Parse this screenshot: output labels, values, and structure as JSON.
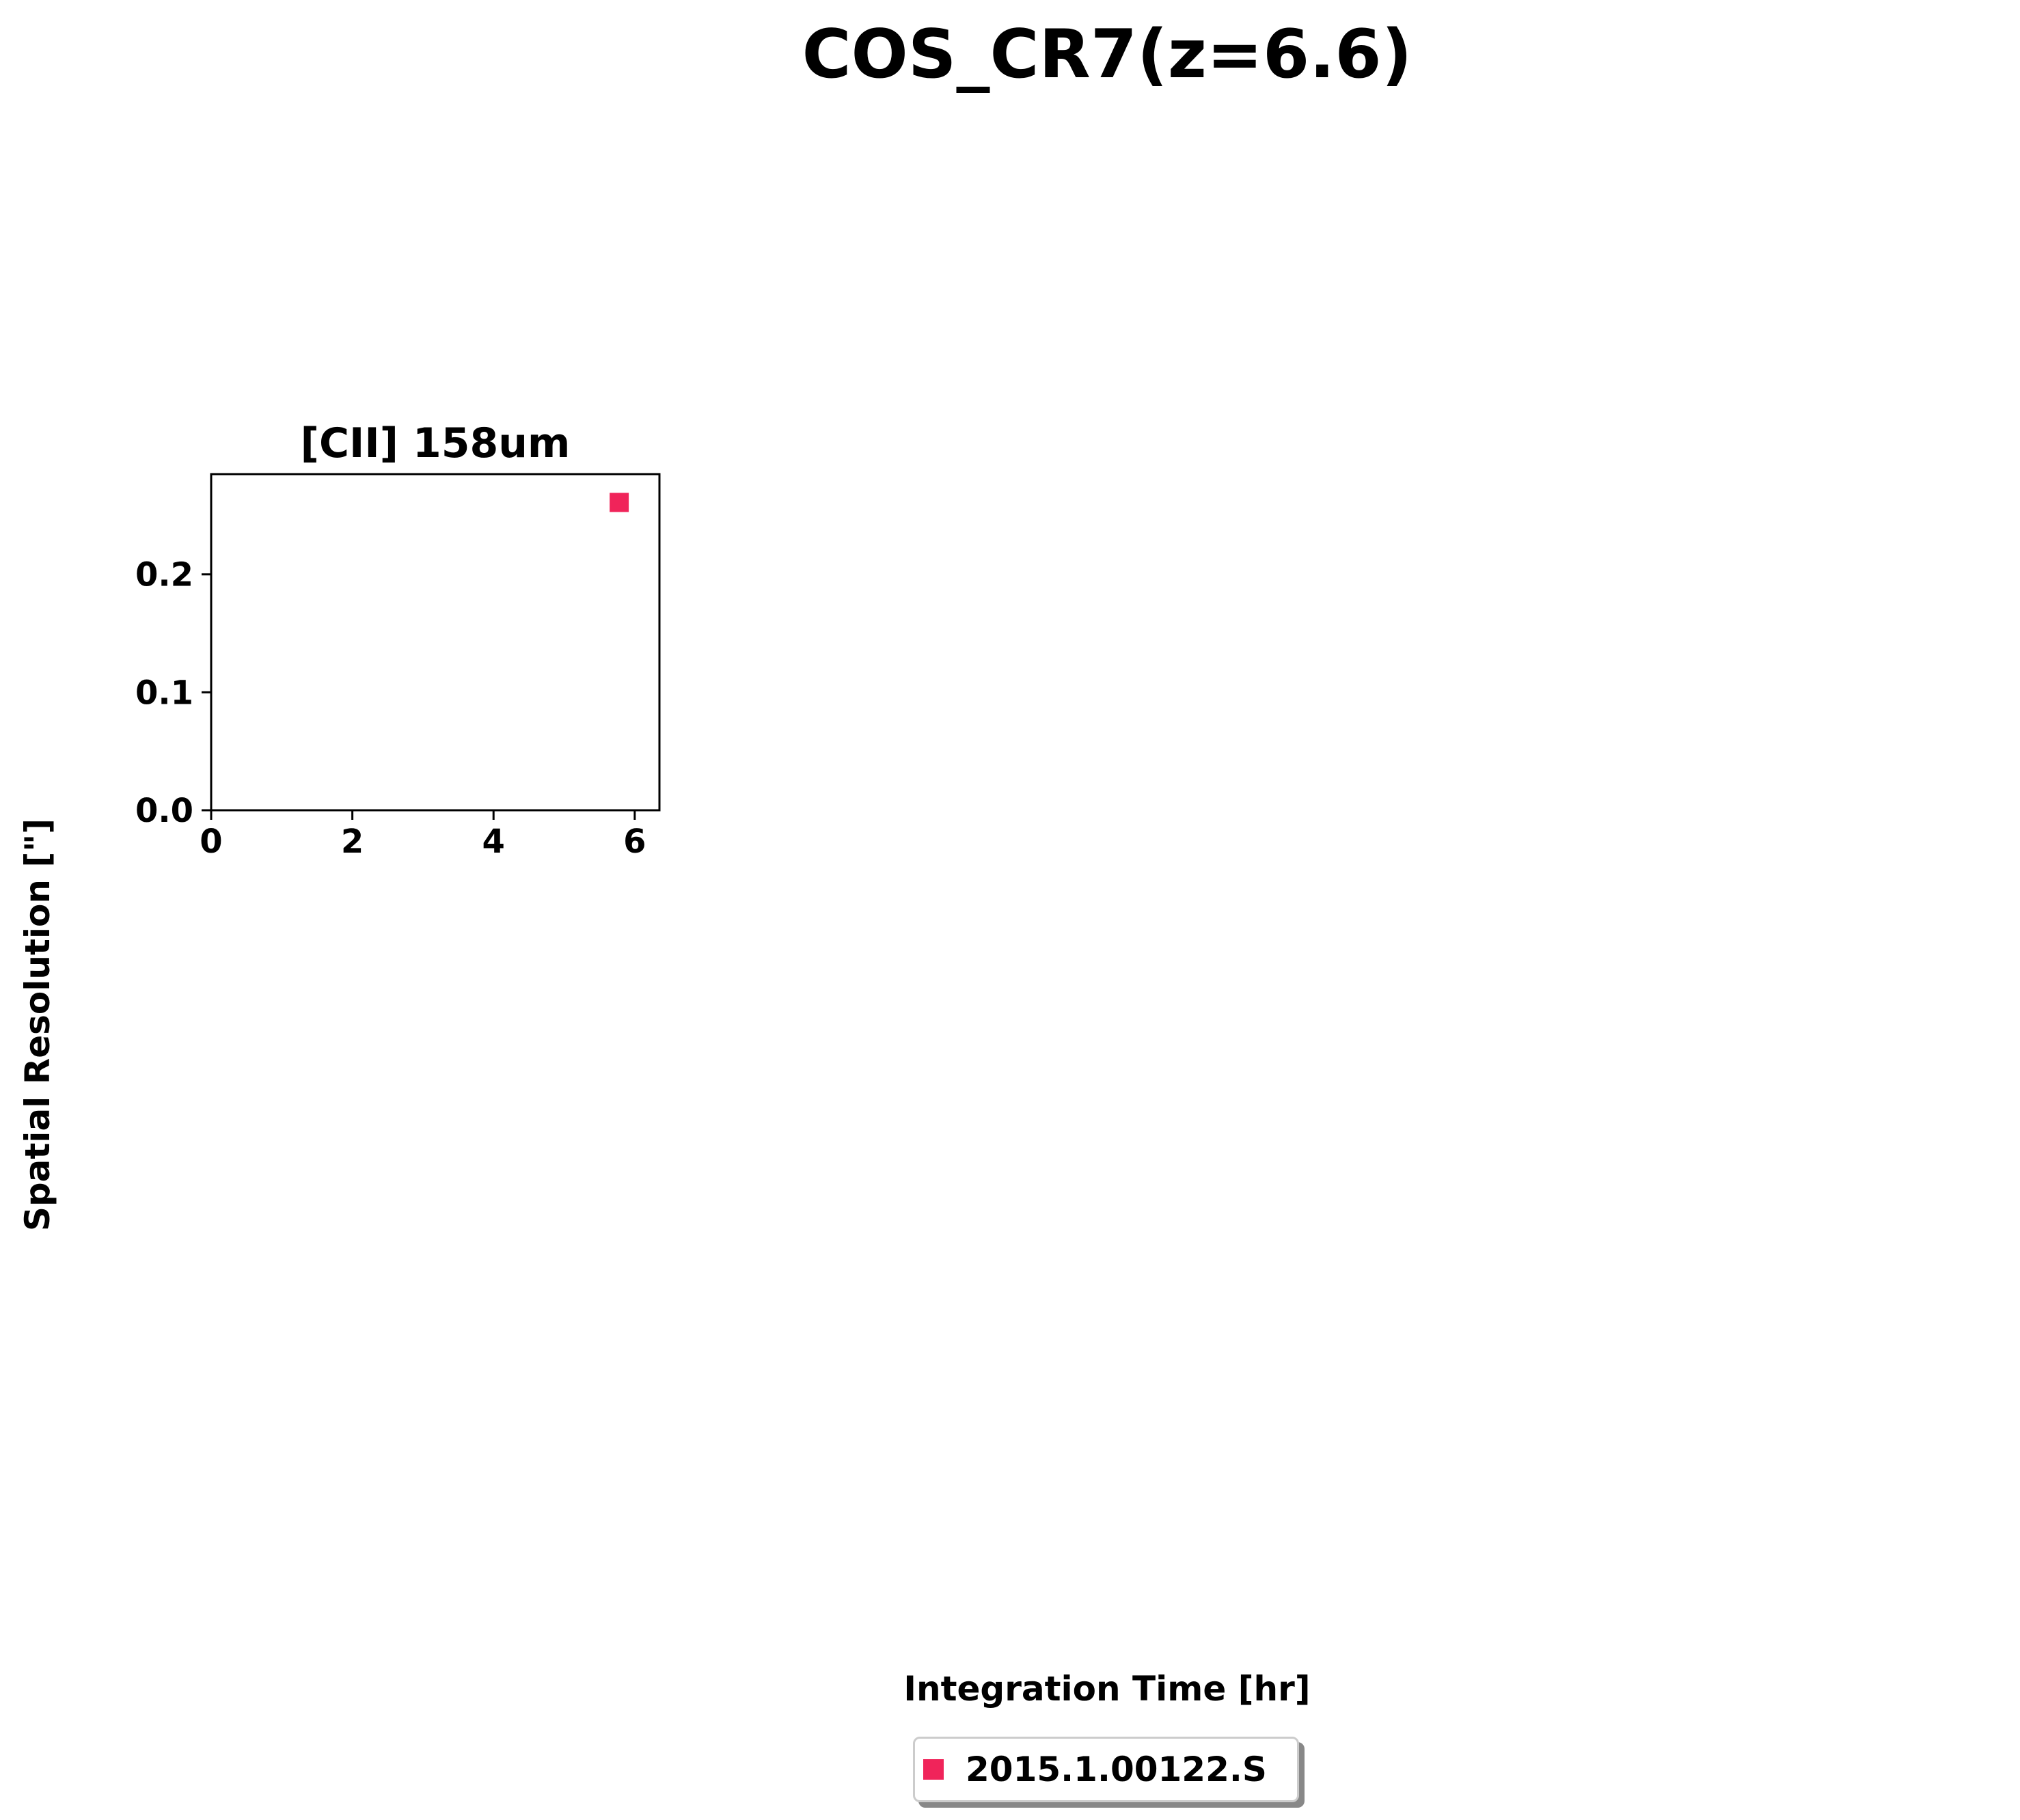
{
  "chart_data": {
    "type": "scatter",
    "suptitle": "COS_CR7(z=6.6)",
    "xlabel": "Integration Time [hr]",
    "ylabel": "Spatial Resolution [\"]",
    "panels": [
      {
        "title": "[CII] 158um",
        "xlim": [
          0,
          6.35
        ],
        "ylim": [
          0,
          0.285
        ],
        "xticks": [
          "0",
          "2",
          "4",
          "6"
        ],
        "xtick_values": [
          0,
          2,
          4,
          6
        ],
        "yticks": [
          "0.0",
          "0.1",
          "0.2"
        ],
        "ytick_values": [
          0,
          0.1,
          0.2
        ],
        "grid": false,
        "series": [
          {
            "name": "2015.1.00122.S",
            "color": "#f0245a",
            "marker": "square",
            "points": [
              {
                "x": 5.78,
                "y": 0.261
              }
            ]
          }
        ]
      }
    ],
    "legend": {
      "placement": "bottom-center",
      "entries": [
        {
          "label": "2015.1.00122.S",
          "color": "#f0245a",
          "marker": "square"
        }
      ]
    }
  }
}
